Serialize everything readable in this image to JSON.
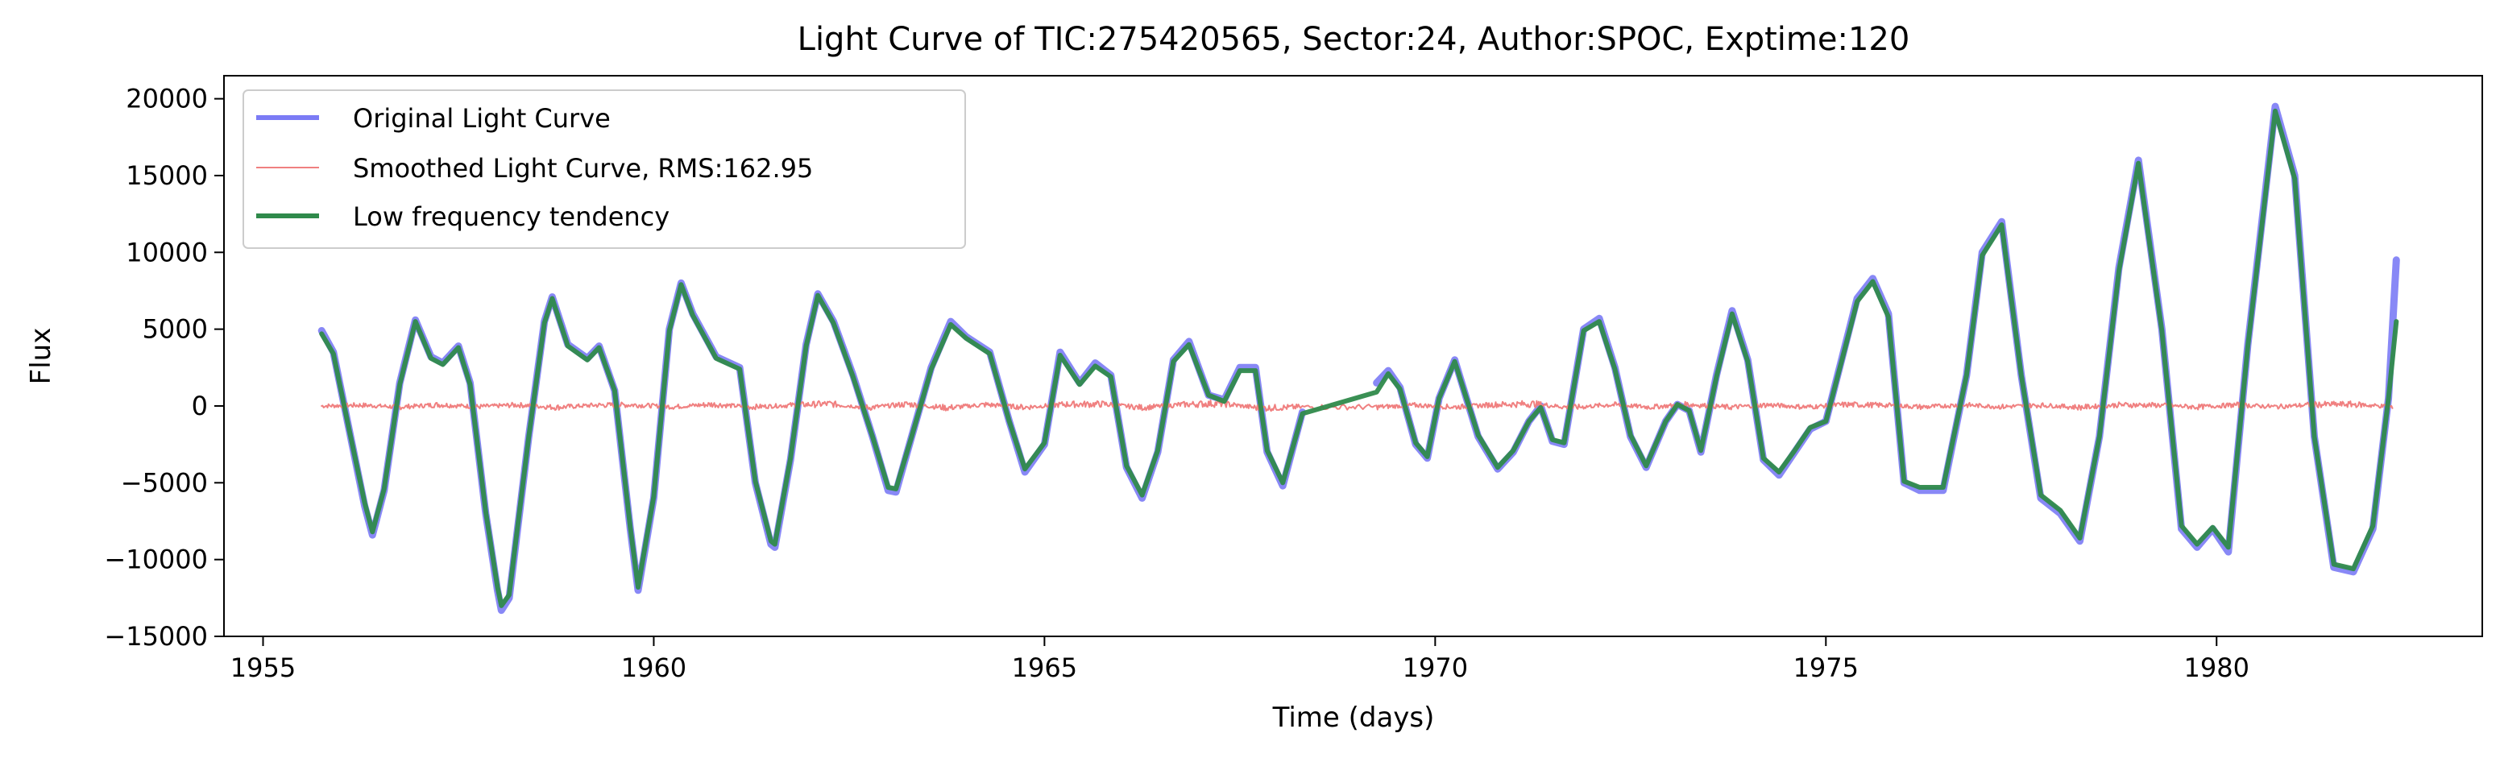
{
  "chart_data": {
    "type": "line",
    "title": "Light Curve of TIC:275420565, Sector:24, Author:SPOC, Exptime:120",
    "xlabel": "Time (days)",
    "ylabel": "Flux",
    "xlim": [
      1954.5,
      1983.4
    ],
    "ylim": [
      -15000,
      21500
    ],
    "xticks": [
      1955,
      1960,
      1965,
      1970,
      1975,
      1980
    ],
    "yticks": [
      -15000,
      -10000,
      -5000,
      0,
      5000,
      10000,
      15000,
      20000
    ],
    "grid": false,
    "legend_position": "top-left",
    "gap": [
      1968.3,
      1969.25
    ],
    "series": [
      {
        "name": "Original Light Curve",
        "color": "#7b7bf5",
        "x": [
          1955.75,
          1955.9,
          1956.1,
          1956.3,
          1956.4,
          1956.55,
          1956.75,
          1956.95,
          1957.15,
          1957.3,
          1957.5,
          1957.65,
          1957.85,
          1958.0,
          1958.05,
          1958.15,
          1958.4,
          1958.6,
          1958.7,
          1958.9,
          1959.15,
          1959.3,
          1959.5,
          1959.7,
          1959.8,
          1960.0,
          1960.2,
          1960.35,
          1960.5,
          1960.8,
          1961.1,
          1961.3,
          1961.5,
          1961.55,
          1961.75,
          1961.95,
          1962.1,
          1962.3,
          1962.55,
          1962.8,
          1963.0,
          1963.1,
          1963.3,
          1963.55,
          1963.8,
          1964.0,
          1964.3,
          1964.55,
          1964.75,
          1965.0,
          1965.2,
          1965.45,
          1965.65,
          1965.85,
          1966.05,
          1966.25,
          1966.45,
          1966.65,
          1966.85,
          1967.1,
          1967.3,
          1967.5,
          1967.7,
          1967.85,
          1968.05,
          1968.3,
          1969.25,
          1969.4,
          1969.55,
          1969.75,
          1969.9,
          1970.05,
          1970.25,
          1970.55,
          1970.8,
          1971.0,
          1971.2,
          1971.35,
          1971.5,
          1971.65,
          1971.9,
          1972.1,
          1972.3,
          1972.5,
          1972.7,
          1972.95,
          1973.1,
          1973.25,
          1973.4,
          1973.6,
          1973.8,
          1974.0,
          1974.2,
          1974.4,
          1974.6,
          1974.8,
          1975.0,
          1975.2,
          1975.4,
          1975.6,
          1975.8,
          1976.0,
          1976.2,
          1976.5,
          1976.8,
          1977.0,
          1977.25,
          1977.5,
          1977.75,
          1978.0,
          1978.25,
          1978.5,
          1978.75,
          1979.0,
          1979.3,
          1979.55,
          1979.75,
          1979.95,
          1980.15,
          1980.4,
          1980.75,
          1981.0,
          1981.25,
          1981.5,
          1981.75,
          1982.0,
          1982.2,
          1982.3
        ],
        "y": [
          4900,
          3500,
          -1500,
          -6500,
          -8400,
          -5500,
          1500,
          5600,
          3200,
          2800,
          3900,
          1500,
          -7000,
          -12000,
          -13300,
          -12500,
          -2000,
          5500,
          7100,
          4000,
          3100,
          3900,
          1000,
          -8000,
          -12000,
          -6000,
          5000,
          8000,
          6000,
          3200,
          2500,
          -5000,
          -9000,
          -9200,
          -3500,
          4000,
          7300,
          5500,
          2000,
          -2000,
          -5500,
          -5600,
          -2000,
          2500,
          5500,
          4500,
          3500,
          -1000,
          -4300,
          -2500,
          3500,
          1500,
          2800,
          2000,
          -4000,
          -6000,
          -3000,
          3000,
          4200,
          700,
          400,
          2500,
          2500,
          -3000,
          -5200,
          -400,
          1500,
          2300,
          1200,
          -2500,
          -3400,
          500,
          3000,
          -2000,
          -4100,
          -3000,
          -1000,
          0,
          -2300,
          -2500,
          5000,
          5700,
          2500,
          -2000,
          -4000,
          -1000,
          100,
          -300,
          -3000,
          2000,
          6200,
          3000,
          -3500,
          -4500,
          -3000,
          -1500,
          -1000,
          3000,
          7000,
          8300,
          6000,
          -5000,
          -5500,
          -5500,
          2000,
          10000,
          12000,
          2000,
          -6000,
          -7000,
          -8800,
          -2000,
          9000,
          16000,
          5000,
          -8000,
          -9200,
          -8000,
          -9500,
          4000,
          19500,
          15000,
          -2000,
          -10500,
          -10800,
          -8000,
          500,
          9500
        ]
      },
      {
        "name": "Smoothed Light Curve, RMS:162.95",
        "color": "#f08080",
        "x": [
          1955.75,
          1956.25,
          1956.75,
          1957.25,
          1957.75,
          1958.25,
          1958.75,
          1959.25,
          1959.75,
          1960.25,
          1960.75,
          1961.25,
          1961.75,
          1962.25,
          1962.75,
          1963.25,
          1963.75,
          1964.25,
          1964.75,
          1965.25,
          1965.75,
          1966.25,
          1966.75,
          1967.25,
          1967.75,
          1968.25,
          1969.25,
          1969.75,
          1970.25,
          1970.75,
          1971.25,
          1971.75,
          1972.25,
          1972.75,
          1973.25,
          1973.75,
          1974.25,
          1974.75,
          1975.25,
          1975.75,
          1976.25,
          1976.75,
          1977.25,
          1977.75,
          1978.25,
          1978.75,
          1979.25,
          1979.75,
          1980.25,
          1980.75,
          1981.25,
          1981.75,
          1982.25
        ],
        "y": [
          0,
          150,
          -200,
          250,
          -150,
          200,
          -250,
          150,
          200,
          -150,
          300,
          -200,
          150,
          400,
          -300,
          350,
          -350,
          250,
          -250,
          300,
          350,
          -300,
          250,
          500,
          -400,
          -200,
          -200,
          150,
          -200,
          250,
          400,
          -300,
          250,
          -200,
          300,
          -250,
          200,
          -200,
          250,
          150,
          -200,
          200,
          -150,
          150,
          -250,
          200,
          150,
          -200,
          200,
          -150,
          250,
          300,
          -150
        ]
      },
      {
        "name": "Low frequency tendency",
        "color": "#2f8a4b",
        "x": [
          1955.75,
          1955.9,
          1956.1,
          1956.3,
          1956.4,
          1956.55,
          1956.75,
          1956.95,
          1957.15,
          1957.3,
          1957.5,
          1957.65,
          1957.85,
          1958.0,
          1958.05,
          1958.15,
          1958.4,
          1958.6,
          1958.7,
          1958.9,
          1959.15,
          1959.3,
          1959.5,
          1959.7,
          1959.8,
          1960.0,
          1960.2,
          1960.35,
          1960.5,
          1960.8,
          1961.1,
          1961.3,
          1961.5,
          1961.55,
          1961.75,
          1961.95,
          1962.1,
          1962.3,
          1962.55,
          1962.8,
          1963.0,
          1963.1,
          1963.3,
          1963.55,
          1963.8,
          1964.0,
          1964.3,
          1964.55,
          1964.75,
          1965.0,
          1965.2,
          1965.45,
          1965.65,
          1965.85,
          1966.05,
          1966.25,
          1966.45,
          1966.65,
          1966.85,
          1967.1,
          1967.3,
          1967.5,
          1967.7,
          1967.85,
          1968.05,
          1968.3,
          1969.25,
          1969.4,
          1969.55,
          1969.75,
          1969.9,
          1970.05,
          1970.25,
          1970.55,
          1970.8,
          1971.0,
          1971.2,
          1971.35,
          1971.5,
          1971.65,
          1971.9,
          1972.1,
          1972.3,
          1972.5,
          1972.7,
          1972.95,
          1973.1,
          1973.25,
          1973.4,
          1973.6,
          1973.8,
          1974.0,
          1974.2,
          1974.4,
          1974.6,
          1974.8,
          1975.0,
          1975.2,
          1975.4,
          1975.6,
          1975.8,
          1976.0,
          1976.2,
          1976.5,
          1976.8,
          1977.0,
          1977.25,
          1977.5,
          1977.75,
          1978.0,
          1978.25,
          1978.5,
          1978.75,
          1979.0,
          1979.3,
          1979.55,
          1979.75,
          1979.95,
          1980.15,
          1980.4,
          1980.75,
          1981.0,
          1981.25,
          1981.5,
          1981.75,
          1982.0,
          1982.2,
          1982.3
        ],
        "y": [
          4700,
          3400,
          -1500,
          -6300,
          -8200,
          -5400,
          1400,
          5500,
          3100,
          2700,
          3800,
          1400,
          -6900,
          -11800,
          -13000,
          -12300,
          -2000,
          5400,
          7000,
          3900,
          3000,
          3800,
          1000,
          -7900,
          -11800,
          -5900,
          4900,
          7900,
          5900,
          3100,
          2400,
          -4900,
          -8800,
          -9000,
          -3400,
          3900,
          7200,
          5400,
          1900,
          -2000,
          -5300,
          -5400,
          -2000,
          2400,
          5300,
          4400,
          3400,
          -1000,
          -4100,
          -2400,
          3300,
          1400,
          2600,
          1900,
          -3900,
          -5800,
          -2900,
          2900,
          4000,
          700,
          300,
          2300,
          2300,
          -2900,
          -5000,
          -500,
          900,
          2100,
          1100,
          -2400,
          -3300,
          500,
          2900,
          -1900,
          -4000,
          -2900,
          -1000,
          -100,
          -2200,
          -2400,
          4900,
          5500,
          2400,
          -1900,
          -3900,
          -1000,
          100,
          -300,
          -2900,
          1900,
          6000,
          2900,
          -3400,
          -4300,
          -2900,
          -1400,
          -1000,
          2900,
          6800,
          8100,
          5800,
          -4900,
          -5300,
          -5300,
          2000,
          9800,
          11800,
          2000,
          -5800,
          -6800,
          -8600,
          -2000,
          8800,
          15800,
          4900,
          -7800,
          -9000,
          -7900,
          -9200,
          3900,
          19200,
          14800,
          -2000,
          -10300,
          -10600,
          -7800,
          500,
          5500
        ]
      }
    ]
  }
}
